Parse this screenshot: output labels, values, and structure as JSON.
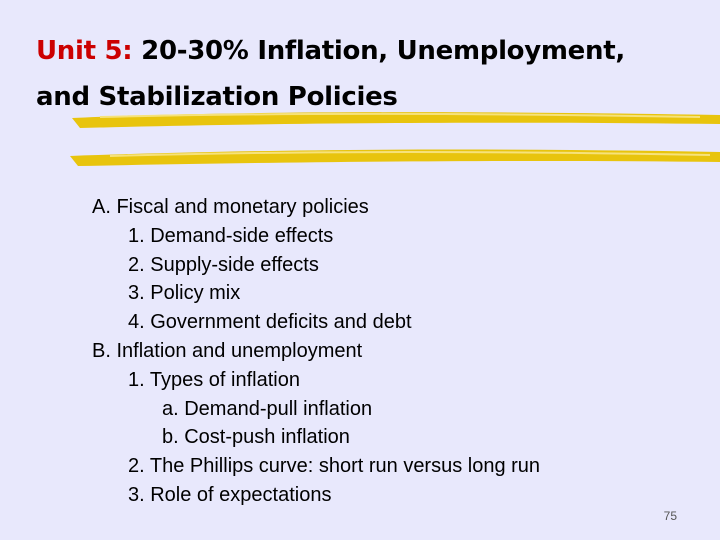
{
  "slide": {
    "title_unit": "Unit 5:",
    "title_line1_rest": " 20-30% Inflation, Unemployment,",
    "title_line2": "and Stabilization Policies",
    "page_number": "75",
    "colors": {
      "background": "#e8e8fc",
      "title_unit": "#cc0000",
      "accent_stroke": "#e8c200"
    }
  },
  "outline": [
    {
      "level": 0,
      "text": "A. Fiscal and monetary policies"
    },
    {
      "level": 1,
      "text": "1. Demand-side effects"
    },
    {
      "level": 1,
      "text": "2. Supply-side effects"
    },
    {
      "level": 1,
      "text": "3. Policy mix"
    },
    {
      "level": 1,
      "text": "4. Government deficits and debt"
    },
    {
      "level": 0,
      "text": "B. Inflation and unemployment"
    },
    {
      "level": 1,
      "text": "1. Types of inflation"
    },
    {
      "level": 2,
      "text": "a. Demand-pull inflation"
    },
    {
      "level": 2,
      "text": "b. Cost-push inflation"
    },
    {
      "level": 1,
      "text": "2. The Phillips curve: short run versus long run"
    },
    {
      "level": 1,
      "text": "3. Role of expectations"
    }
  ]
}
